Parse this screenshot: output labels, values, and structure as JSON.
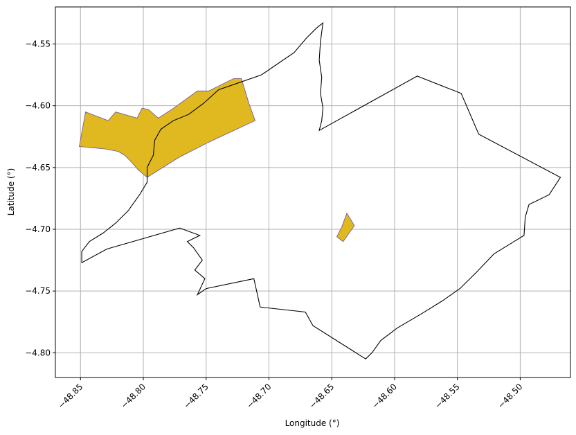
{
  "chart_data": {
    "type": "map",
    "xlabel": "Longitude (°)",
    "ylabel": "Latitude (°)",
    "xlim": [
      -48.87,
      -48.46
    ],
    "ylim": [
      -4.82,
      -4.52
    ],
    "xticks": [
      -48.85,
      -48.8,
      -48.75,
      -48.7,
      -48.65,
      -48.6,
      -48.55,
      -48.5
    ],
    "xtick_labels": [
      "−48.85",
      "−48.80",
      "−48.75",
      "−48.70",
      "−48.65",
      "−48.60",
      "−48.55",
      "−48.50"
    ],
    "yticks": [
      -4.8,
      -4.75,
      -4.7,
      -4.65,
      -4.6,
      -4.55
    ],
    "ytick_labels": [
      "−4.80",
      "−4.75",
      "−4.70",
      "−4.65",
      "−4.60",
      "−4.55"
    ],
    "grid": true,
    "colors": {
      "fill": "#e0b81f",
      "fill_edge": "#6a4fa0",
      "outline": "#000000",
      "grid": "#b0b0b0"
    },
    "boundary": [
      [
        -48.657,
        -4.533
      ],
      [
        -48.659,
        -4.548
      ],
      [
        -48.66,
        -4.563
      ],
      [
        -48.658,
        -4.577
      ],
      [
        -48.659,
        -4.59
      ],
      [
        -48.657,
        -4.602
      ],
      [
        -48.658,
        -4.612
      ],
      [
        -48.66,
        -4.62
      ],
      [
        -48.582,
        -4.576
      ],
      [
        -48.547,
        -4.59
      ],
      [
        -48.533,
        -4.623
      ],
      [
        -48.468,
        -4.658
      ],
      [
        -48.477,
        -4.672
      ],
      [
        -48.493,
        -4.68
      ],
      [
        -48.496,
        -4.69
      ],
      [
        -48.497,
        -4.705
      ],
      [
        -48.505,
        -4.71
      ],
      [
        -48.521,
        -4.72
      ],
      [
        -48.535,
        -4.735
      ],
      [
        -48.548,
        -4.748
      ],
      [
        -48.562,
        -4.758
      ],
      [
        -48.578,
        -4.768
      ],
      [
        -48.598,
        -4.78
      ],
      [
        -48.611,
        -4.79
      ],
      [
        -48.618,
        -4.8
      ],
      [
        -48.623,
        -4.805
      ],
      [
        -48.665,
        -4.778
      ],
      [
        -48.671,
        -4.767
      ],
      [
        -48.707,
        -4.763
      ],
      [
        -48.712,
        -4.74
      ],
      [
        -48.75,
        -4.748
      ],
      [
        -48.757,
        -4.753
      ],
      [
        -48.751,
        -4.74
      ],
      [
        -48.759,
        -4.733
      ],
      [
        -48.753,
        -4.725
      ],
      [
        -48.76,
        -4.715
      ],
      [
        -48.765,
        -4.71
      ],
      [
        -48.755,
        -4.705
      ],
      [
        -48.771,
        -4.699
      ],
      [
        -48.829,
        -4.716
      ],
      [
        -48.849,
        -4.727
      ],
      [
        -48.849,
        -4.718
      ],
      [
        -48.843,
        -4.71
      ],
      [
        -48.832,
        -4.703
      ],
      [
        -48.822,
        -4.695
      ],
      [
        -48.812,
        -4.685
      ],
      [
        -48.803,
        -4.672
      ],
      [
        -48.797,
        -4.662
      ],
      [
        -48.797,
        -4.65
      ],
      [
        -48.792,
        -4.64
      ],
      [
        -48.791,
        -4.628
      ],
      [
        -48.786,
        -4.619
      ],
      [
        -48.776,
        -4.612
      ],
      [
        -48.764,
        -4.607
      ],
      [
        -48.752,
        -4.598
      ],
      [
        -48.74,
        -4.587
      ],
      [
        -48.723,
        -4.581
      ],
      [
        -48.706,
        -4.575
      ],
      [
        -48.693,
        -4.566
      ],
      [
        -48.68,
        -4.557
      ],
      [
        -48.67,
        -4.545
      ],
      [
        -48.662,
        -4.537
      ],
      [
        -48.657,
        -4.533
      ]
    ],
    "regions": [
      [
        [
          -48.851,
          -4.633
        ],
        [
          -48.846,
          -4.605
        ],
        [
          -48.828,
          -4.612
        ],
        [
          -48.822,
          -4.605
        ],
        [
          -48.805,
          -4.61
        ],
        [
          -48.801,
          -4.602
        ],
        [
          -48.796,
          -4.603
        ],
        [
          -48.788,
          -4.61
        ],
        [
          -48.776,
          -4.602
        ],
        [
          -48.757,
          -4.588
        ],
        [
          -48.748,
          -4.588
        ],
        [
          -48.728,
          -4.578
        ],
        [
          -48.722,
          -4.578
        ],
        [
          -48.716,
          -4.598
        ],
        [
          -48.711,
          -4.612
        ],
        [
          -48.749,
          -4.63
        ],
        [
          -48.772,
          -4.642
        ],
        [
          -48.797,
          -4.658
        ],
        [
          -48.804,
          -4.652
        ],
        [
          -48.81,
          -4.645
        ],
        [
          -48.815,
          -4.64
        ],
        [
          -48.82,
          -4.637
        ],
        [
          -48.83,
          -4.635
        ],
        [
          -48.851,
          -4.633
        ]
      ],
      [
        [
          -48.638,
          -4.687
        ],
        [
          -48.632,
          -4.697
        ],
        [
          -48.641,
          -4.71
        ],
        [
          -48.646,
          -4.706
        ],
        [
          -48.642,
          -4.698
        ],
        [
          -48.638,
          -4.687
        ]
      ]
    ]
  }
}
